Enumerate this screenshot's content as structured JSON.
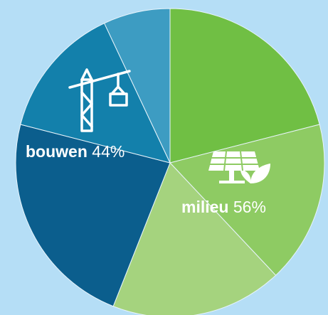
{
  "chart_data": {
    "type": "pie",
    "categories": [
      "milieu",
      "bouwen"
    ],
    "values": [
      56,
      44
    ],
    "value_labels": [
      "56%",
      "44%"
    ],
    "segments": [
      [
        21,
        17,
        18
      ],
      [
        23,
        14,
        7
      ]
    ],
    "segment_colors": [
      [
        "#70bf44",
        "#8ecb63",
        "#a5d37e"
      ],
      [
        "#0b5e8d",
        "#1380ab",
        "#3d9cc2"
      ]
    ]
  }
}
